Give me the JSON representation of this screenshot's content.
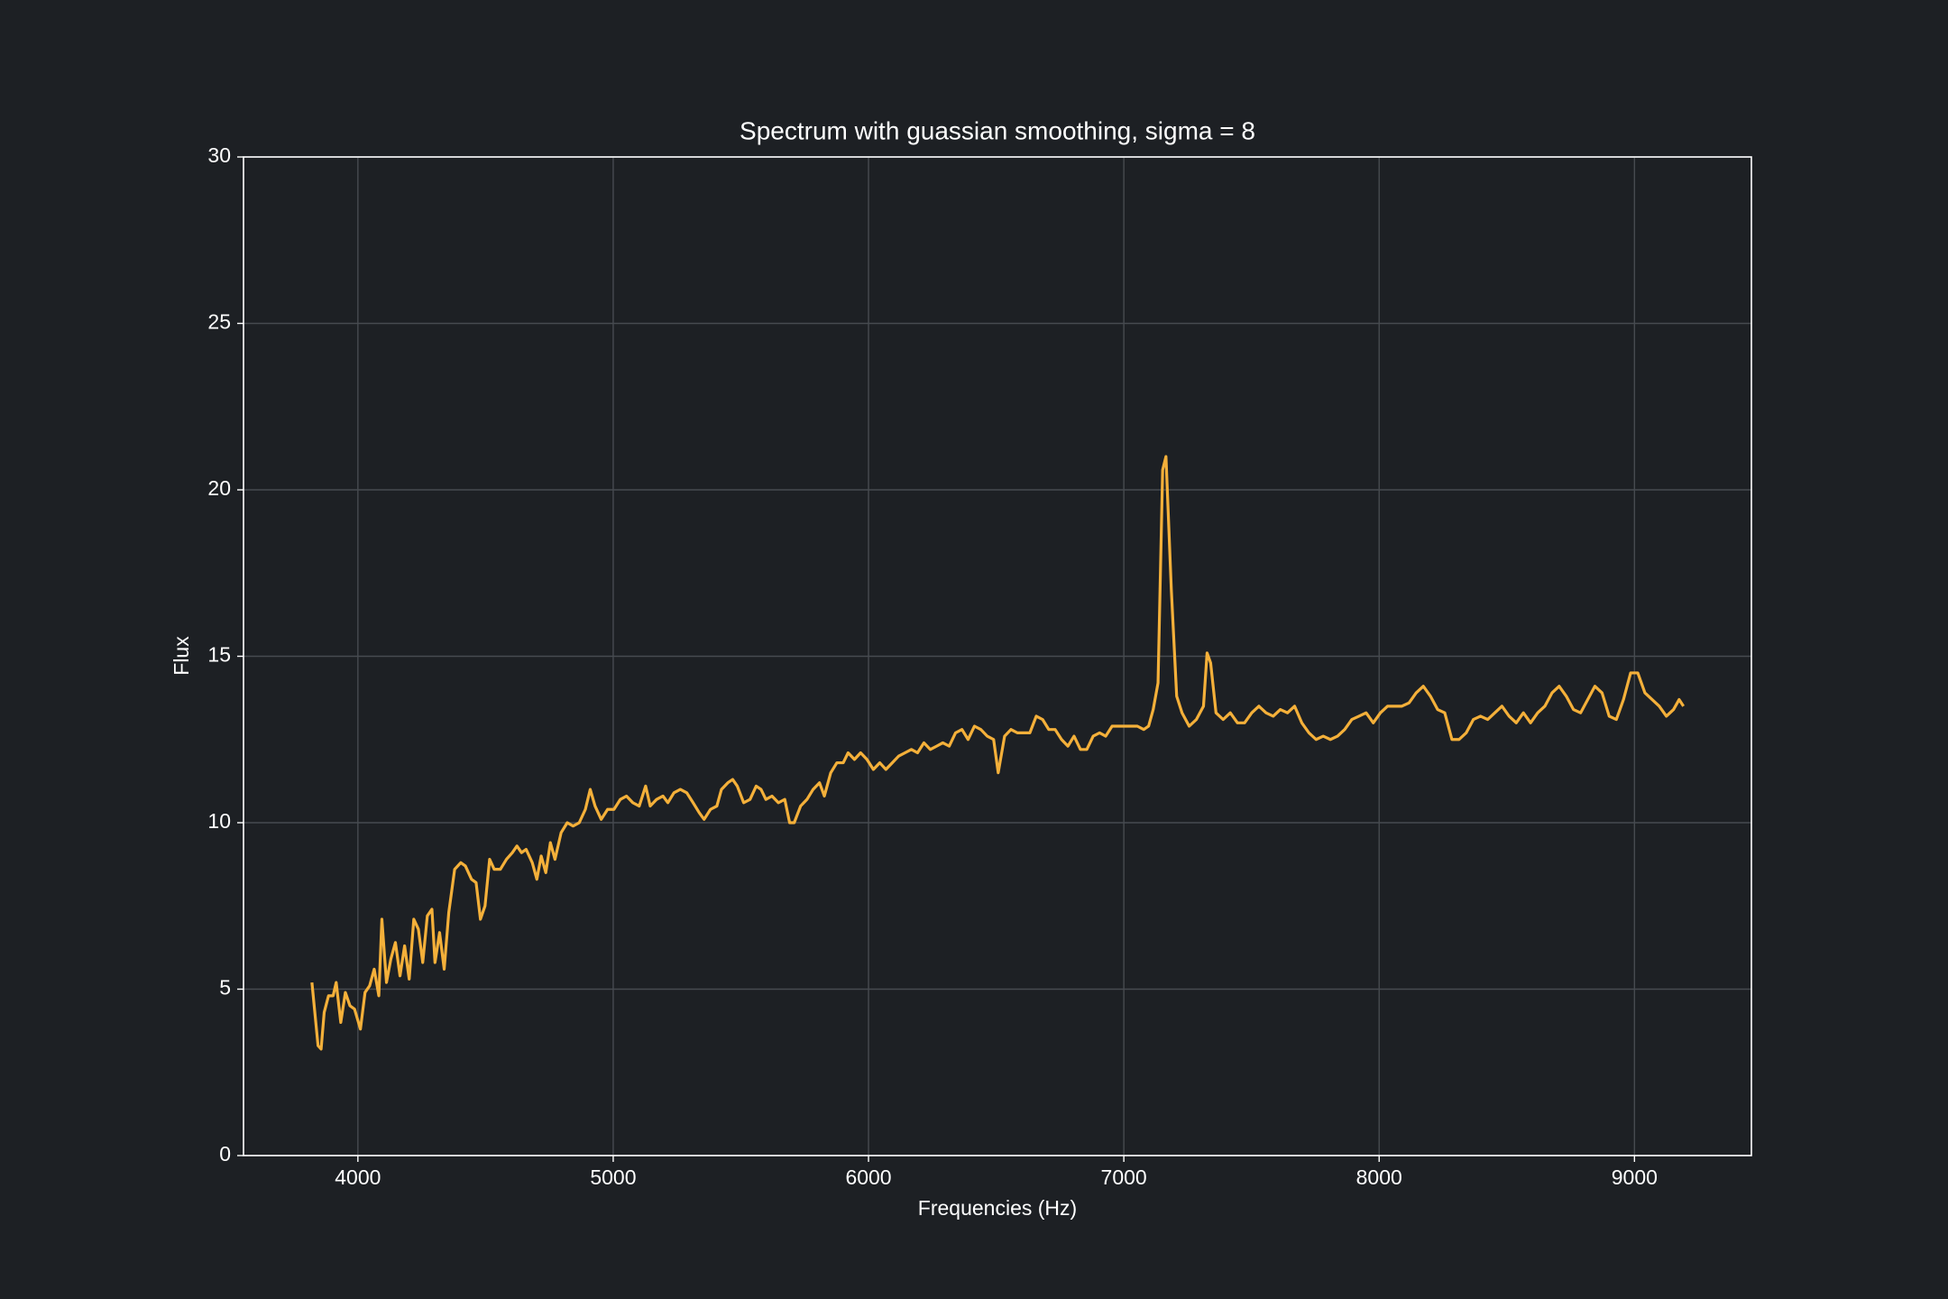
{
  "chart_data": {
    "type": "line",
    "title": "Spectrum with guassian smoothing, sigma = 8",
    "x_label": "Frequencies (Hz)",
    "y_label": "Flux",
    "xlim": [
      3552,
      9458
    ],
    "ylim": [
      0,
      30
    ],
    "xticks": [
      4000,
      5000,
      6000,
      7000,
      8000,
      9000
    ],
    "yticks": [
      0,
      5,
      10,
      15,
      20,
      25,
      30
    ],
    "grid": true,
    "x": [
      3820,
      3844,
      3856,
      3868,
      3885,
      3903,
      3915,
      3933,
      3951,
      3969,
      3987,
      4010,
      4028,
      4046,
      4064,
      4082,
      4094,
      4112,
      4129,
      4147,
      4165,
      4183,
      4201,
      4219,
      4237,
      4254,
      4272,
      4290,
      4302,
      4320,
      4338,
      4356,
      4379,
      4403,
      4421,
      4445,
      4463,
      4480,
      4498,
      4516,
      4534,
      4558,
      4582,
      4605,
      4623,
      4641,
      4659,
      4683,
      4701,
      4718,
      4736,
      4754,
      4772,
      4796,
      4820,
      4843,
      4867,
      4891,
      4910,
      4929,
      4953,
      4978,
      5003,
      5028,
      5052,
      5077,
      5102,
      5127,
      5145,
      5170,
      5195,
      5214,
      5238,
      5263,
      5288,
      5313,
      5337,
      5356,
      5381,
      5406,
      5424,
      5449,
      5468,
      5486,
      5511,
      5536,
      5560,
      5579,
      5598,
      5622,
      5647,
      5672,
      5691,
      5709,
      5734,
      5759,
      5783,
      5808,
      5827,
      5852,
      5876,
      5901,
      5920,
      5945,
      5969,
      5994,
      6019,
      6044,
      6068,
      6093,
      6118,
      6143,
      6168,
      6192,
      6217,
      6242,
      6267,
      6291,
      6316,
      6341,
      6366,
      6390,
      6415,
      6440,
      6465,
      6490,
      6508,
      6533,
      6558,
      6583,
      6607,
      6632,
      6657,
      6682,
      6706,
      6731,
      6756,
      6781,
      6805,
      6830,
      6855,
      6880,
      6905,
      6929,
      6954,
      6979,
      7004,
      7028,
      7053,
      7078,
      7097,
      7115,
      7134,
      7152,
      7165,
      7186,
      7207,
      7228,
      7256,
      7284,
      7312,
      7326,
      7340,
      7361,
      7389,
      7417,
      7445,
      7473,
      7501,
      7529,
      7557,
      7585,
      7613,
      7641,
      7669,
      7697,
      7725,
      7753,
      7781,
      7809,
      7837,
      7865,
      7893,
      7921,
      7949,
      7977,
      8005,
      8033,
      8061,
      8089,
      8117,
      8145,
      8173,
      8201,
      8229,
      8257,
      8285,
      8313,
      8341,
      8369,
      8397,
      8425,
      8453,
      8481,
      8509,
      8537,
      8565,
      8593,
      8621,
      8649,
      8677,
      8705,
      8733,
      8761,
      8789,
      8817,
      8845,
      8873,
      8901,
      8929,
      8957,
      8985,
      9013,
      9041,
      9069,
      9097,
      9125,
      9153,
      9175,
      9192
    ],
    "series": [
      {
        "name": "Flux",
        "color": "#f4b03a",
        "values": [
          5.2,
          3.3,
          3.2,
          4.3,
          4.8,
          4.8,
          5.2,
          4.0,
          4.9,
          4.5,
          4.4,
          3.8,
          4.9,
          5.1,
          5.6,
          4.8,
          7.1,
          5.2,
          5.9,
          6.4,
          5.4,
          6.3,
          5.3,
          7.1,
          6.8,
          5.8,
          7.2,
          7.4,
          5.8,
          6.7,
          5.6,
          7.3,
          8.6,
          8.8,
          8.7,
          8.3,
          8.2,
          7.1,
          7.5,
          8.9,
          8.6,
          8.6,
          8.9,
          9.1,
          9.3,
          9.1,
          9.2,
          8.8,
          8.3,
          9.0,
          8.5,
          9.4,
          8.9,
          9.7,
          10.0,
          9.9,
          10.0,
          10.4,
          11.0,
          10.5,
          10.1,
          10.4,
          10.4,
          10.7,
          10.8,
          10.6,
          10.5,
          11.1,
          10.5,
          10.7,
          10.8,
          10.6,
          10.9,
          11.0,
          10.9,
          10.6,
          10.3,
          10.1,
          10.4,
          10.5,
          11.0,
          11.2,
          11.3,
          11.1,
          10.6,
          10.7,
          11.1,
          11.0,
          10.7,
          10.8,
          10.6,
          10.7,
          10.0,
          10.0,
          10.5,
          10.7,
          11.0,
          11.2,
          10.8,
          11.5,
          11.8,
          11.8,
          12.1,
          11.9,
          12.1,
          11.9,
          11.6,
          11.8,
          11.6,
          11.8,
          12.0,
          12.1,
          12.2,
          12.1,
          12.4,
          12.2,
          12.3,
          12.4,
          12.3,
          12.7,
          12.8,
          12.5,
          12.9,
          12.8,
          12.6,
          12.5,
          11.5,
          12.6,
          12.8,
          12.7,
          12.7,
          12.7,
          13.2,
          13.1,
          12.8,
          12.8,
          12.5,
          12.3,
          12.6,
          12.2,
          12.2,
          12.6,
          12.7,
          12.6,
          12.9,
          12.9,
          12.9,
          12.9,
          12.9,
          12.8,
          12.9,
          13.4,
          14.2,
          20.6,
          21.0,
          17.0,
          13.8,
          13.3,
          12.9,
          13.1,
          13.5,
          15.1,
          14.8,
          13.3,
          13.1,
          13.3,
          13.0,
          13.0,
          13.3,
          13.5,
          13.3,
          13.2,
          13.4,
          13.3,
          13.5,
          13.0,
          12.7,
          12.5,
          12.6,
          12.5,
          12.6,
          12.8,
          13.1,
          13.2,
          13.3,
          13.0,
          13.3,
          13.5,
          13.5,
          13.5,
          13.6,
          13.9,
          14.1,
          13.8,
          13.4,
          13.3,
          12.5,
          12.5,
          12.7,
          13.1,
          13.2,
          13.1,
          13.3,
          13.5,
          13.2,
          13.0,
          13.3,
          13.0,
          13.3,
          13.5,
          13.9,
          14.1,
          13.8,
          13.4,
          13.3,
          13.7,
          14.1,
          13.9,
          13.2,
          13.1,
          13.7,
          14.5,
          14.5,
          13.9,
          13.7,
          13.5,
          13.2,
          13.4,
          13.7,
          13.5
        ]
      }
    ]
  }
}
